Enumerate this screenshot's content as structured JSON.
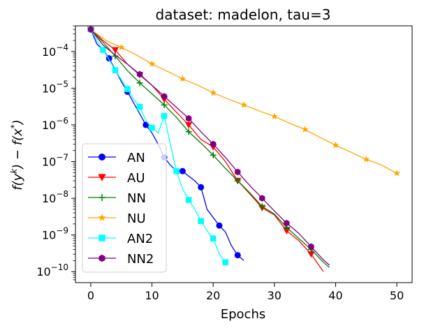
{
  "chart_data": {
    "type": "line",
    "title": "dataset: madelon, tau=3",
    "xlabel": "Epochs",
    "ylabel": "f(y^k) − f(x*)",
    "ylabel_parts": {
      "f1": "f(y",
      "k": "k",
      "mid": ") − f(x",
      "star": "*",
      "end": ")"
    },
    "xlim": [
      -2.5,
      52.5
    ],
    "ylim_log10": [
      -10.3,
      -3.3
    ],
    "x_ticks": [
      0,
      10,
      20,
      30,
      40,
      50
    ],
    "x_tick_labels": [
      "0",
      "10",
      "20",
      "30",
      "40",
      "50"
    ],
    "y_ticks_log10": [
      -10,
      -9,
      -8,
      -7,
      -6,
      -5,
      -4
    ],
    "y_tick_labels": [
      {
        "base": "10",
        "exp": "−10"
      },
      {
        "base": "10",
        "exp": "−9"
      },
      {
        "base": "10",
        "exp": "−8"
      },
      {
        "base": "10",
        "exp": "−7"
      },
      {
        "base": "10",
        "exp": "−6"
      },
      {
        "base": "10",
        "exp": "−5"
      },
      {
        "base": "10",
        "exp": "−4"
      }
    ],
    "legend_position": "lower-left",
    "series": [
      {
        "name": "AN",
        "color": "#0000ff",
        "marker": "circle",
        "x": [
          0,
          1,
          2,
          3,
          4,
          5,
          6,
          7,
          8,
          9,
          10,
          11,
          12,
          13,
          14,
          15,
          16,
          17,
          18,
          19,
          20,
          21,
          22,
          23,
          24,
          25
        ],
        "y": [
          0.0004,
          0.00016,
          0.00011,
          6.5e-05,
          3.2e-05,
          1.5e-05,
          8e-06,
          4e-06,
          2e-06,
          1e-06,
          6e-07,
          3e-07,
          1.3e-07,
          8e-08,
          5.5e-08,
          5.5e-08,
          4e-08,
          3e-08,
          2e-08,
          5e-09,
          3e-09,
          1.8e-09,
          1.2e-09,
          5e-10,
          2.8e-10,
          2e-10
        ],
        "marker_indices": [
          0,
          3,
          6,
          9,
          12,
          15,
          18,
          21,
          24
        ]
      },
      {
        "name": "AU",
        "color": "#ff0000",
        "marker": "triangle-down",
        "x": [
          0,
          2,
          4,
          6,
          8,
          10,
          12,
          14,
          16,
          18,
          20,
          22,
          24,
          26,
          28,
          30,
          32,
          34,
          36,
          38
        ],
        "y": [
          0.0004,
          0.0002,
          0.00011,
          4.5e-05,
          2.3e-05,
          1.2e-05,
          5e-06,
          2.2e-06,
          1e-06,
          4e-07,
          2.5e-07,
          1e-07,
          3e-08,
          1.3e-08,
          5.5e-09,
          3.5e-09,
          1.3e-09,
          7e-10,
          3e-10,
          1e-10
        ],
        "marker_indices": [
          0,
          2,
          4,
          6,
          8,
          10,
          12,
          14,
          16,
          18
        ]
      },
      {
        "name": "NN",
        "color": "#008000",
        "marker": "plus",
        "x": [
          0,
          2,
          4,
          6,
          8,
          10,
          12,
          14,
          16,
          18,
          20,
          22,
          24,
          26,
          28,
          30,
          32,
          34,
          36,
          38,
          39
        ],
        "y": [
          0.0004,
          0.00018,
          7.5e-05,
          3e-05,
          1.4e-05,
          7e-06,
          3.5e-06,
          1.6e-06,
          6.5e-07,
          3.2e-07,
          1.5e-07,
          6.5e-08,
          3e-08,
          1.4e-08,
          6e-09,
          3.7e-09,
          1.6e-09,
          8e-10,
          4e-10,
          1.8e-10,
          1.3e-10
        ],
        "marker_indices": [
          0,
          2,
          4,
          6,
          8,
          10,
          12,
          14,
          16,
          18
        ]
      },
      {
        "name": "NU",
        "color": "#ffa500",
        "marker": "star",
        "x": [
          0,
          2.5,
          5,
          7.5,
          10,
          12.5,
          15,
          17.5,
          20,
          22.5,
          25,
          27.5,
          30,
          32.5,
          35,
          37.5,
          40,
          42.5,
          45,
          47.5,
          50
        ],
        "y": [
          0.0004,
          0.0002,
          0.00013,
          8e-05,
          4.6e-05,
          2.9e-05,
          1.8e-05,
          1.2e-05,
          7.5e-06,
          5e-06,
          3.5e-06,
          2.4e-06,
          1.7e-06,
          1.1e-06,
          7.5e-07,
          4.5e-07,
          2.8e-07,
          1.8e-07,
          1.15e-07,
          8e-08,
          4.8e-08
        ],
        "marker_indices": [
          0,
          2,
          4,
          6,
          8,
          10,
          12,
          14,
          16,
          18,
          20
        ]
      },
      {
        "name": "AN2",
        "color": "#00ffff",
        "marker": "square",
        "x": [
          0,
          1,
          2,
          3,
          4,
          5,
          6,
          7,
          8,
          9,
          10,
          11,
          12,
          13,
          14,
          15,
          16,
          17,
          18,
          19,
          20,
          21,
          22
        ],
        "y": [
          0.0004,
          0.0002,
          0.00011,
          6e-05,
          3.1e-05,
          1.7e-05,
          9.5e-06,
          5e-06,
          3.1e-06,
          1.3e-06,
          8.3e-07,
          6e-07,
          1.75e-06,
          3e-07,
          5.5e-08,
          1.8e-08,
          9e-09,
          5e-09,
          2.4e-09,
          1.3e-09,
          8e-10,
          3e-10,
          1.8e-10
        ],
        "marker_indices": [
          0,
          2,
          4,
          6,
          8,
          10,
          12,
          14,
          16,
          18,
          20,
          22
        ]
      },
      {
        "name": "NN2",
        "color": "#800080",
        "marker": "hexagon",
        "x": [
          0,
          2,
          4,
          6,
          8,
          10,
          12,
          14,
          16,
          18,
          20,
          22,
          24,
          26,
          28,
          30,
          32,
          34,
          36,
          38,
          39
        ],
        "y": [
          0.0004,
          0.00015,
          8e-05,
          4.5e-05,
          2.4e-05,
          1.2e-05,
          6e-06,
          3e-06,
          1.5e-06,
          6.5e-07,
          3e-07,
          1.3e-07,
          5.2e-08,
          2.2e-08,
          1e-08,
          4.5e-09,
          2.1e-09,
          1.1e-09,
          4.8e-10,
          2.1e-10,
          1.5e-10
        ],
        "marker_indices": [
          0,
          4,
          6,
          8,
          10,
          12,
          14,
          16,
          18
        ]
      }
    ]
  }
}
